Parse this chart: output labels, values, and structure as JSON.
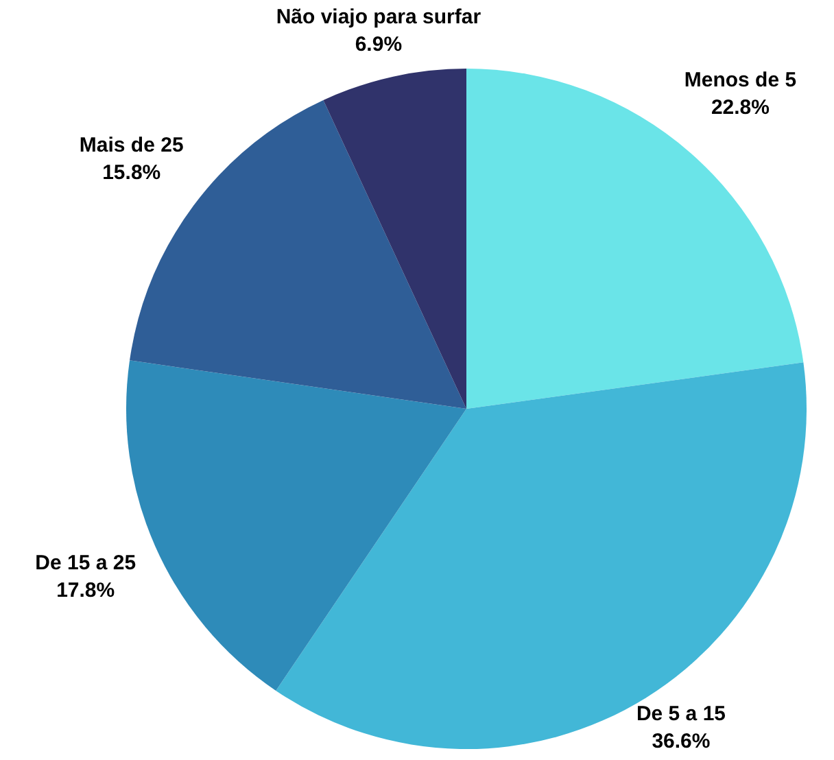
{
  "chart_data": {
    "type": "pie",
    "categories": [
      "Menos de 5",
      "De 5 a 15",
      "De 15 a 25",
      "Mais de 25",
      "Não viajo para surfar"
    ],
    "values": [
      22.8,
      36.6,
      17.8,
      15.8,
      6.9
    ],
    "colors": [
      "#6ae4e8",
      "#42b7d7",
      "#2e8bb9",
      "#2f5e97",
      "#30336b"
    ],
    "value_labels": [
      "22.8%",
      "36.6%",
      "17.8%",
      "15.8%",
      "6.9%"
    ],
    "legend": false
  }
}
